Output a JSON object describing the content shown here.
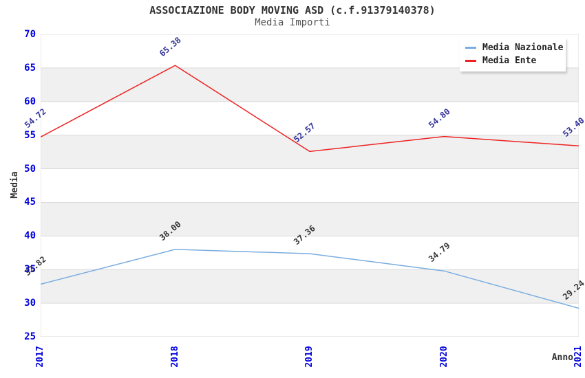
{
  "header": {
    "title": "ASSOCIAZIONE BODY MOVING ASD (c.f.91379140378)",
    "subtitle": "Media Importi"
  },
  "chart_data": {
    "type": "line",
    "title": "ASSOCIAZIONE BODY MOVING ASD (c.f.91379140378)",
    "subtitle": "Media Importi",
    "xlabel": "Anno",
    "ylabel": "Media",
    "x": [
      "2017",
      "2018",
      "2019",
      "2020",
      "2021"
    ],
    "series": [
      {
        "name": "Media Nazionale",
        "color": "#79ade0",
        "label_color": "#333333",
        "values": [
          32.82,
          38.0,
          37.36,
          34.79,
          29.24
        ],
        "labels": [
          "32.82",
          "38.00",
          "37.36",
          "34.79",
          "29.24"
        ]
      },
      {
        "name": "Media Ente",
        "color": "#ee2222",
        "label_color": "#333399",
        "values": [
          54.72,
          65.38,
          52.57,
          54.8,
          53.4
        ],
        "labels": [
          "54.72",
          "65.38",
          "52.57",
          "54.80",
          "53.40"
        ]
      }
    ],
    "ylim": [
      25,
      70
    ],
    "yticks": [
      25,
      30,
      35,
      40,
      45,
      50,
      55,
      60,
      65,
      70
    ],
    "grid": "horizontal-bands",
    "legend_position": "top-right",
    "colors": {
      "tick_label": "#0000dd",
      "band_gray": "#f0f0f0",
      "band_white": "#ffffff",
      "gridline": "#dadada",
      "axis_title": "#333333"
    }
  }
}
